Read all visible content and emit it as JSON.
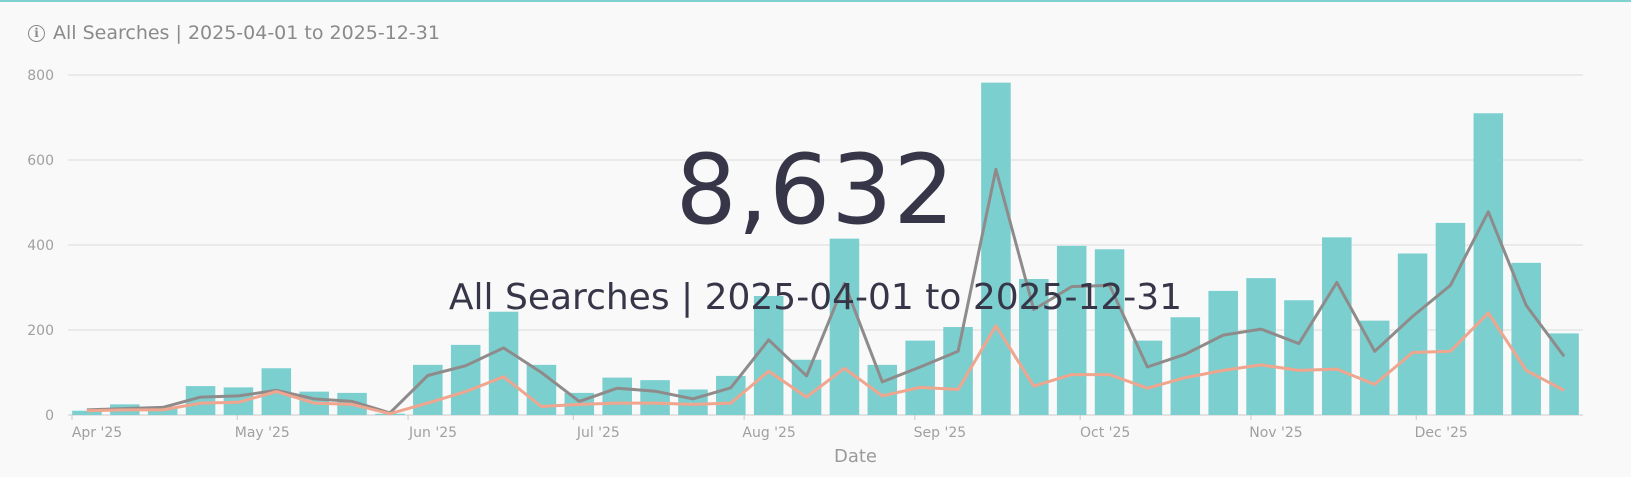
{
  "header": {
    "info_icon": "info-icon",
    "title": "All Searches | 2025-04-01 to 2025-12-31"
  },
  "kpi": {
    "value": "8,632",
    "label": "All Searches | 2025-04-01 to 2025-12-31"
  },
  "colors": {
    "bars": "#7ccfcf",
    "line_dark": "#8f8b8b",
    "line_light": "#efa58e",
    "grid": "#e2e2e2",
    "axis_text": "#a0a0a0",
    "kpi_text": "#373649",
    "accent_top": "#7ed3d1"
  },
  "chart_data": {
    "type": "bar",
    "xlabel": "Date",
    "ylabel": "",
    "ylim": [
      0,
      800
    ],
    "yticks": [
      "0",
      "200",
      "400",
      "600",
      "800"
    ],
    "grid": true,
    "x_tick_labels": [
      "Apr '25",
      "May '25",
      "Jun '25",
      "Jul '25",
      "Aug '25",
      "Sep '25",
      "Oct '25",
      "Nov '25",
      "Dec '25"
    ],
    "bar_values": [
      10,
      25,
      20,
      68,
      65,
      110,
      55,
      52,
      3,
      118,
      165,
      243,
      118,
      52,
      88,
      82,
      60,
      92,
      280,
      130,
      415,
      118,
      175,
      207,
      782,
      320,
      398,
      390,
      175,
      230,
      292,
      322,
      270,
      418,
      222,
      380,
      452,
      710,
      358,
      192
    ],
    "series": [
      {
        "values": [
          12,
          15,
          18,
          42,
          45,
          58,
          38,
          32,
          5,
          93,
          116,
          158,
          100,
          32,
          63,
          56,
          38,
          64,
          177,
          92,
          310,
          78,
          113,
          150,
          578,
          248,
          302,
          305,
          113,
          143,
          188,
          202,
          168,
          312,
          150,
          232,
          305,
          478,
          258,
          138
        ]
      },
      {
        "values": [
          10,
          12,
          12,
          28,
          30,
          55,
          28,
          25,
          3,
          28,
          55,
          90,
          20,
          25,
          28,
          28,
          25,
          28,
          103,
          42,
          110,
          45,
          65,
          60,
          210,
          68,
          95,
          95,
          63,
          88,
          105,
          118,
          105,
          108,
          72,
          147,
          150,
          240,
          105,
          58
        ]
      }
    ]
  }
}
